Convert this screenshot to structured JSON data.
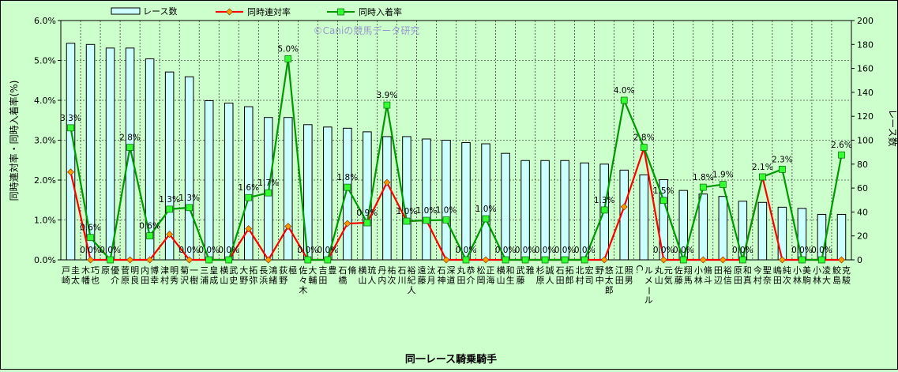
{
  "chart_data": {
    "type": "bar",
    "title": "",
    "watermark": "©Caniの競馬データ研究",
    "xlabel": "同一レース騎乗騎手",
    "ylabel_left": "同時連対率・同時入着率(%)",
    "ylabel_right": "レース数",
    "ylim_left": [
      0,
      6.0
    ],
    "ylim_right": [
      0,
      200
    ],
    "yticks_left": [
      "0.0%",
      "1.0%",
      "2.0%",
      "3.0%",
      "4.0%",
      "5.0%",
      "6.0%"
    ],
    "yticks_right": [
      "0",
      "20",
      "40",
      "60",
      "80",
      "100",
      "120",
      "140",
      "160",
      "180",
      "200"
    ],
    "grid": true,
    "legend_position": "top",
    "colors": {
      "bars_fill": "#ccffff",
      "bars_stroke": "#000000",
      "rentai": "#ff0000",
      "rentai_marker": "#ff9900",
      "nyuchaku": "#009900",
      "nyuchaku_marker": "#33ff33",
      "plot_bg": "#ccffcc"
    },
    "categories": [
      [
        "戸崎",
        "圭太"
      ],
      [
        "木幡",
        "巧也"
      ],
      [
        "原",
        "優介"
      ],
      [
        "菅原",
        "明良"
      ],
      [
        "内田",
        "博幸"
      ],
      [
        "津村",
        "明秀"
      ],
      [
        "菊沢",
        "一樹"
      ],
      [
        "三浦",
        "皇成"
      ],
      [
        "横山",
        "武史"
      ],
      [
        "大野",
        "拓弥"
      ],
      [
        "長浜",
        "鴻緒"
      ],
      [
        "荻野",
        "極"
      ],
      [
        "佐々木",
        "大輔"
      ],
      [
        "吉田",
        "豊"
      ],
      [
        "石橋",
        "脩"
      ],
      [
        "横山",
        "琉人"
      ],
      [
        "丹内",
        "祐次"
      ],
      [
        "石川",
        "裕紀人"
      ],
      [
        "遠藤",
        "汰月"
      ],
      [
        "石神",
        "深道"
      ],
      [
        "丸田",
        "恭介"
      ],
      [
        "松岡",
        "正海"
      ],
      [
        "横山",
        "和生"
      ],
      [
        "武藤",
        "雅"
      ],
      [
        "杉原",
        "誠人"
      ],
      [
        "石田",
        "拓郎"
      ],
      [
        "北村",
        "宏司"
      ],
      [
        "野中",
        "悠太郎"
      ],
      [
        "江田",
        "照男"
      ],
      [
        "C.",
        "ルメール"
      ],
      [
        "丸山",
        "元気"
      ],
      [
        "佐藤",
        "翔馬"
      ],
      [
        "小林",
        "脩斗"
      ],
      [
        "田辺",
        "裕信"
      ],
      [
        "原田",
        "和真"
      ],
      [
        "今村",
        "聖奈"
      ],
      [
        "嶋田",
        "純次"
      ],
      [
        "小林",
        "美駒"
      ],
      [
        "小林",
        "凌大"
      ],
      [
        "鮫島",
        "克駿"
      ]
    ],
    "series": [
      {
        "name": "レース数",
        "axis": "right",
        "type": "bar",
        "values": [
          181,
          180,
          177,
          177,
          168,
          157,
          153,
          133,
          131,
          128,
          119,
          119,
          113,
          111,
          110,
          107,
          103,
          103,
          101,
          100,
          98,
          97,
          89,
          83,
          83,
          83,
          81,
          80,
          75,
          71,
          67,
          58,
          55,
          53,
          49,
          48,
          44,
          43,
          38,
          38
        ]
      },
      {
        "name": "同時連対率",
        "axis": "left",
        "type": "line",
        "values": [
          2.2,
          0,
          0,
          0,
          0,
          0.64,
          0,
          0,
          0,
          0.78,
          0,
          0.84,
          0,
          0,
          0.91,
          0.93,
          1.94,
          0.97,
          0.99,
          0,
          0,
          0,
          0,
          0,
          0,
          0,
          0,
          0,
          1.33,
          2.8,
          0,
          0,
          0,
          0,
          0,
          2.08,
          0,
          0,
          0,
          0
        ]
      },
      {
        "name": "同時入着率",
        "axis": "left",
        "type": "line",
        "values": [
          3.31,
          0.56,
          0,
          2.82,
          0.6,
          1.27,
          1.31,
          0,
          0,
          1.56,
          1.68,
          5.04,
          0,
          0,
          1.82,
          0.93,
          3.88,
          0.97,
          0.99,
          1.0,
          0,
          1.03,
          0,
          0,
          0,
          0,
          0,
          1.25,
          4.0,
          2.82,
          1.49,
          0,
          1.82,
          1.89,
          0,
          2.08,
          2.27,
          0,
          0,
          2.63
        ]
      }
    ],
    "data_labels": {
      "rentai": {
        "1": "0.0%",
        "2": "0.0%",
        "6": "0.0%",
        "7": "0.0%",
        "8": "0.0%",
        "12": "0.0%",
        "13": "0.0%",
        "22": "0.0%",
        "23": "0.0%",
        "24": "0.0%",
        "25": "0.0%",
        "26": "0.0%",
        "30": "0.0%",
        "31": "0.0%",
        "34": "0.0%",
        "37": "0.0%",
        "38": "0.0%"
      },
      "nyuchaku": {
        "0": "3.3%",
        "1": "0.6%",
        "3": "2.8%",
        "4": "0.6%",
        "5": "1.3%",
        "6": "1.3%",
        "9": "1.6%",
        "10": "1.7%",
        "11": "5.0%",
        "14": "1.8%",
        "15": "0.9%",
        "16": "3.9%",
        "17": "1.0%",
        "18": "1.0%",
        "19": "1.0%",
        "20": "0.0%",
        "21": "1.0%",
        "27": "1.3%",
        "28": "4.0%",
        "29": "2.8%",
        "30": "1.5%",
        "32": "1.8%",
        "33": "1.9%",
        "35": "2.1%",
        "36": "2.3%",
        "39": "2.6%"
      }
    }
  }
}
